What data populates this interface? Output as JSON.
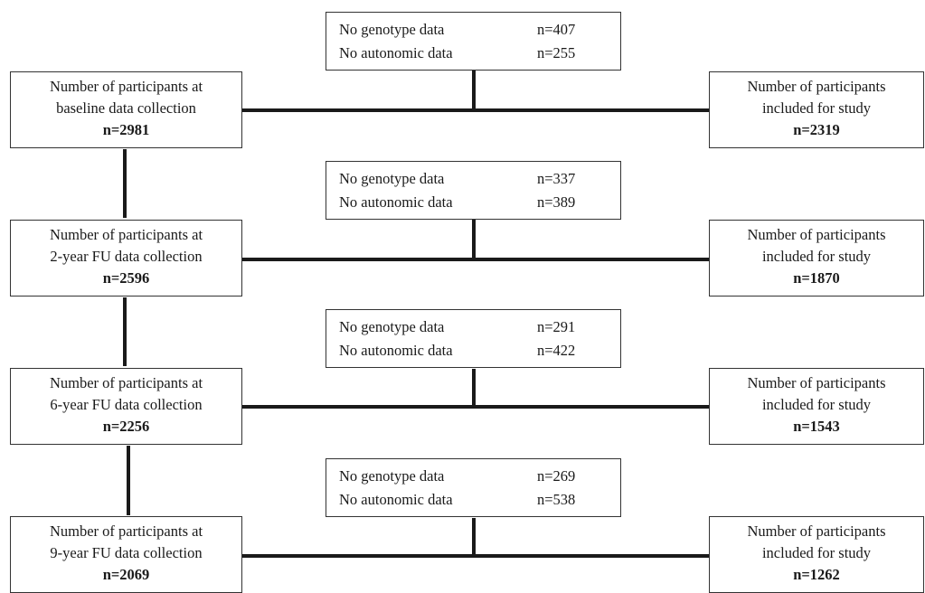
{
  "stages": [
    {
      "left": {
        "line1": "Number of participants at",
        "line2": "baseline data collection",
        "n": "n=2981"
      },
      "excluded": [
        {
          "label": "No genotype data",
          "value": "n=407"
        },
        {
          "label": "No autonomic data",
          "value": "n=255"
        }
      ],
      "right": {
        "line1": "Number of participants",
        "line2": "included for study",
        "n": "n=2319"
      }
    },
    {
      "left": {
        "line1": "Number of participants at",
        "line2": "2-year FU data collection",
        "n": "n=2596"
      },
      "excluded": [
        {
          "label": "No genotype data",
          "value": "n=337"
        },
        {
          "label": "No autonomic data",
          "value": "n=389"
        }
      ],
      "right": {
        "line1": "Number of participants",
        "line2": "included for study",
        "n": "n=1870"
      }
    },
    {
      "left": {
        "line1": "Number of participants at",
        "line2": "6-year FU data collection",
        "n": "n=2256"
      },
      "excluded": [
        {
          "label": "No genotype data",
          "value": "n=291"
        },
        {
          "label": "No autonomic data",
          "value": "n=422"
        }
      ],
      "right": {
        "line1": "Number of participants",
        "line2": "included for study",
        "n": "n=1543"
      }
    },
    {
      "left": {
        "line1": "Number of participants at",
        "line2": "9-year FU data collection",
        "n": "n=2069"
      },
      "excluded": [
        {
          "label": "No genotype data",
          "value": "n=269"
        },
        {
          "label": "No autonomic data",
          "value": "n=538"
        }
      ],
      "right": {
        "line1": "Number of participants",
        "line2": "included for study",
        "n": "n=1262"
      }
    }
  ]
}
